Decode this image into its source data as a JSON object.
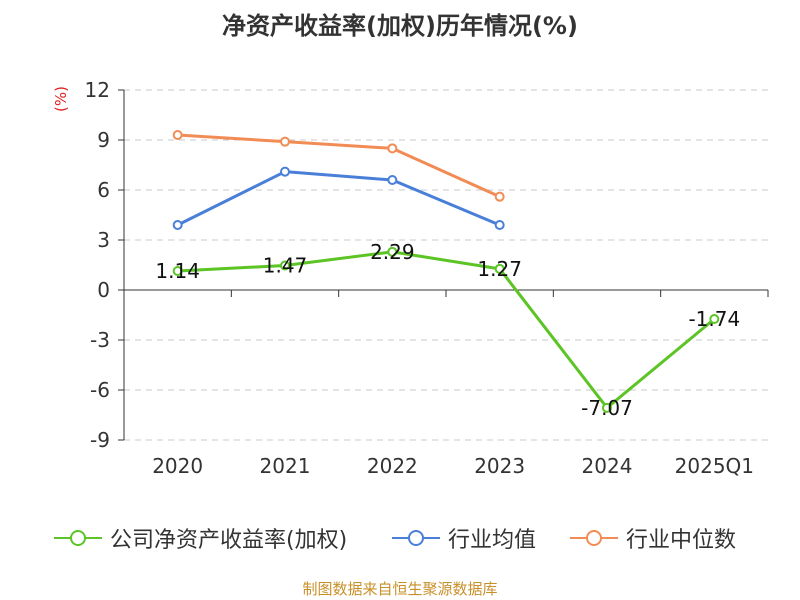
{
  "chart_data": {
    "type": "line",
    "title": "净资产收益率(加权)历年情况(%)",
    "ylabel": "(%)",
    "categories": [
      "2020",
      "2021",
      "2022",
      "2023",
      "2024",
      "2025Q1"
    ],
    "ylim": [
      -9,
      12
    ],
    "yticks": [
      "12",
      "9",
      "6",
      "3",
      "0",
      "-3",
      "-6",
      "-9"
    ],
    "grid": true,
    "legend_position": "bottom",
    "series": [
      {
        "name": "公司净资产收益率(加权)",
        "color": "#5cc425",
        "values": [
          1.14,
          1.47,
          2.29,
          1.27,
          -7.07,
          -1.74
        ],
        "labels": [
          "1.14",
          "1.47",
          "2.29",
          "1.27",
          "-7.07",
          "-1.74"
        ]
      },
      {
        "name": "行业均值",
        "color": "#4a7fd9",
        "values": [
          3.9,
          7.1,
          6.6,
          3.9,
          null,
          null
        ]
      },
      {
        "name": "行业中位数",
        "color": "#f28c55",
        "values": [
          9.3,
          8.9,
          8.5,
          5.6,
          null,
          null
        ]
      }
    ]
  },
  "footer": {
    "source": "制图数据来自恒生聚源数据库"
  }
}
